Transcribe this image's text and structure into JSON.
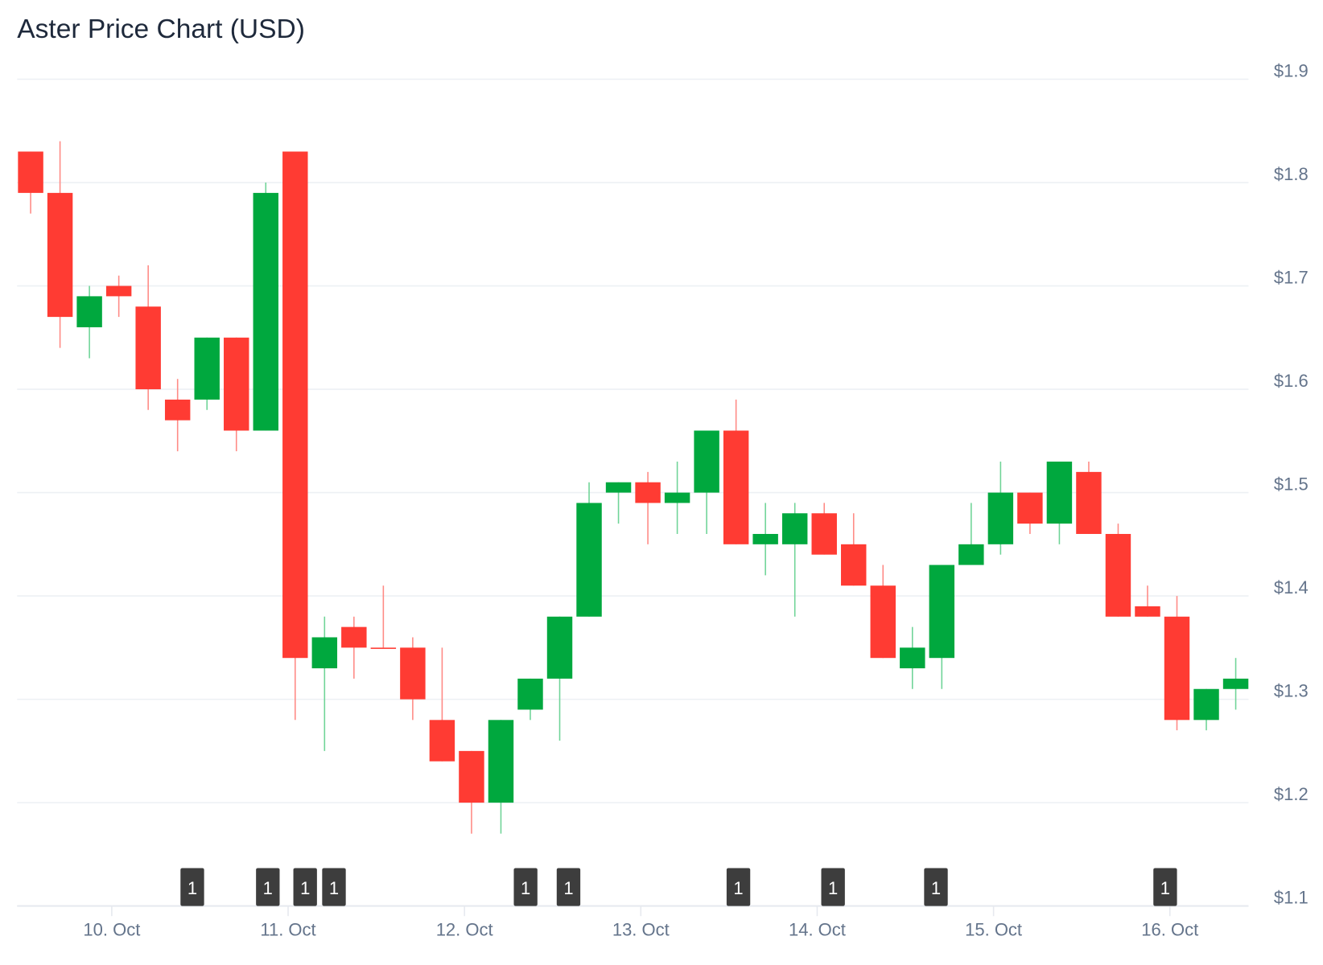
{
  "chart_data": {
    "type": "candlestick",
    "title": "Aster Price Chart (USD)",
    "xlabel": "",
    "ylabel": "",
    "ylim": [
      1.1,
      1.9
    ],
    "grid": true,
    "y_ticks": [
      {
        "value": 1.9,
        "label": "$1.9"
      },
      {
        "value": 1.8,
        "label": "$1.8"
      },
      {
        "value": 1.7,
        "label": "$1.7"
      },
      {
        "value": 1.6,
        "label": "$1.6"
      },
      {
        "value": 1.5,
        "label": "$1.5"
      },
      {
        "value": 1.4,
        "label": "$1.4"
      },
      {
        "value": 1.3,
        "label": "$1.3"
      },
      {
        "value": 1.2,
        "label": "$1.2"
      },
      {
        "value": 1.1,
        "label": "$1.1"
      }
    ],
    "x_ticks": [
      {
        "candle_index": 2.76,
        "label": "10. Oct"
      },
      {
        "candle_index": 8.76,
        "label": "11. Oct"
      },
      {
        "candle_index": 14.76,
        "label": "12. Oct"
      },
      {
        "candle_index": 20.76,
        "label": "13. Oct"
      },
      {
        "candle_index": 26.76,
        "label": "14. Oct"
      },
      {
        "candle_index": 32.76,
        "label": "15. Oct"
      },
      {
        "candle_index": 38.76,
        "label": "16. Oct"
      }
    ],
    "candles_ohlc": [
      [
        1.83,
        1.83,
        1.77,
        1.79
      ],
      [
        1.79,
        1.84,
        1.64,
        1.67
      ],
      [
        1.66,
        1.7,
        1.63,
        1.69
      ],
      [
        1.7,
        1.71,
        1.67,
        1.69
      ],
      [
        1.68,
        1.72,
        1.58,
        1.6
      ],
      [
        1.59,
        1.61,
        1.54,
        1.57
      ],
      [
        1.59,
        1.65,
        1.58,
        1.65
      ],
      [
        1.65,
        1.65,
        1.54,
        1.56
      ],
      [
        1.56,
        1.8,
        1.56,
        1.79
      ],
      [
        1.83,
        1.83,
        1.28,
        1.34
      ],
      [
        1.33,
        1.38,
        1.25,
        1.36
      ],
      [
        1.37,
        1.38,
        1.32,
        1.35
      ],
      [
        1.35,
        1.41,
        1.35,
        1.35
      ],
      [
        1.35,
        1.36,
        1.28,
        1.3
      ],
      [
        1.28,
        1.35,
        1.24,
        1.24
      ],
      [
        1.25,
        1.25,
        1.17,
        1.2
      ],
      [
        1.2,
        1.28,
        1.17,
        1.28
      ],
      [
        1.29,
        1.32,
        1.28,
        1.32
      ],
      [
        1.32,
        1.38,
        1.26,
        1.38
      ],
      [
        1.38,
        1.51,
        1.38,
        1.49
      ],
      [
        1.5,
        1.51,
        1.47,
        1.51
      ],
      [
        1.51,
        1.52,
        1.45,
        1.49
      ],
      [
        1.49,
        1.53,
        1.46,
        1.5
      ],
      [
        1.5,
        1.56,
        1.46,
        1.56
      ],
      [
        1.56,
        1.59,
        1.45,
        1.45
      ],
      [
        1.45,
        1.49,
        1.42,
        1.46
      ],
      [
        1.45,
        1.49,
        1.38,
        1.48
      ],
      [
        1.48,
        1.49,
        1.44,
        1.44
      ],
      [
        1.45,
        1.48,
        1.41,
        1.41
      ],
      [
        1.41,
        1.43,
        1.34,
        1.34
      ],
      [
        1.33,
        1.37,
        1.31,
        1.35
      ],
      [
        1.34,
        1.43,
        1.31,
        1.43
      ],
      [
        1.43,
        1.49,
        1.43,
        1.45
      ],
      [
        1.45,
        1.53,
        1.44,
        1.5
      ],
      [
        1.5,
        1.5,
        1.46,
        1.47
      ],
      [
        1.47,
        1.53,
        1.45,
        1.53
      ],
      [
        1.52,
        1.53,
        1.46,
        1.46
      ],
      [
        1.46,
        1.47,
        1.38,
        1.38
      ],
      [
        1.39,
        1.41,
        1.38,
        1.38
      ],
      [
        1.38,
        1.4,
        1.27,
        1.28
      ],
      [
        1.28,
        1.31,
        1.27,
        1.31
      ],
      [
        1.31,
        1.34,
        1.29,
        1.32
      ]
    ],
    "event_flags": [
      {
        "candle_index": 5.5,
        "label": "1"
      },
      {
        "candle_index": 8.07,
        "label": "1"
      },
      {
        "candle_index": 9.34,
        "label": "1"
      },
      {
        "candle_index": 10.32,
        "label": "1"
      },
      {
        "candle_index": 16.84,
        "label": "1"
      },
      {
        "candle_index": 18.3,
        "label": "1"
      },
      {
        "candle_index": 24.08,
        "label": "1"
      },
      {
        "candle_index": 27.3,
        "label": "1"
      },
      {
        "candle_index": 30.8,
        "label": "1"
      },
      {
        "candle_index": 38.6,
        "label": "1"
      }
    ],
    "colors": {
      "up": "#00a83e",
      "down": "#ff3b33",
      "up_wick": "#6fd497",
      "down_wick": "#ff8a85",
      "flag": "#3d3d3d"
    }
  }
}
